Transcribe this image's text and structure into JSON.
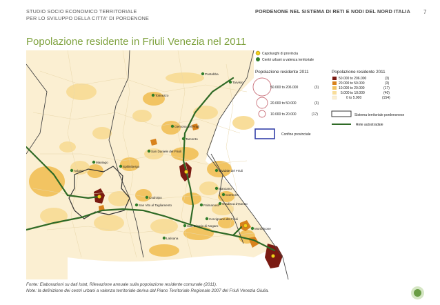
{
  "header": {
    "left_line1": "STUDIO SOCIO ECONOMICO TERRITORIALE",
    "left_line2": "PER LO SVILUPPO DELLA CITTA' DI PORDENONE",
    "right": "PORDENONE NEL SISTEMA DI RETI E NODI DEL NORD ITALIA",
    "page_number": "7"
  },
  "title": "Popolazione residente in Friuli Venezia nel 2011",
  "legend": {
    "capoluoghi": "Capoluoghi di provincia",
    "centri": "Centri urbani a valenza territoriale",
    "circles_title": "Popolazione residente 2011",
    "circles": [
      {
        "label": "50.000 to 206.000",
        "count": "(3)"
      },
      {
        "label": "20.000 to 50.000",
        "count": "(3)"
      },
      {
        "label": "10.000 to 20.000",
        "count": "(17)"
      }
    ],
    "classes_title": "Popolazione residente 2011",
    "classes": [
      {
        "label": "50.000 to 206.000",
        "count": "(3)",
        "color": "#7a1a12"
      },
      {
        "label": "20.000 to 50.000",
        "count": "(3)",
        "color": "#d8821c"
      },
      {
        "label": "10.000 to 20.000",
        "count": "(17)",
        "color": "#f2c462"
      },
      {
        "label": "5.000 to 10.000",
        "count": "(40)",
        "color": "#f8dd9a"
      },
      {
        "label": "0 to 5.000",
        "count": "(154)",
        "color": "#fbefd2"
      }
    ],
    "sistema": "Sistema territoriale pordenonese",
    "confine": "Confine provinciale",
    "autostrada": "Rete autostradale"
  },
  "places": [
    "Tarvisio",
    "Pontebba",
    "Tolmezzo",
    "Gemona del Friuli",
    "Tarcento",
    "San Daniele del Friuli",
    "Maniago",
    "Spilimbergo",
    "Cividale del Friuli",
    "Aviano",
    "Manzano",
    "Cormons",
    "Gradisca d'Isonzo",
    "Codroipo",
    "San Vito al Tagliamento",
    "Palmanova",
    "Cervignano del Friuli",
    "San Giorgio di Nogaro",
    "Latisana",
    "Monfalcone"
  ],
  "source_line1": "Fonte: Elaborazioni su dati Istat, Rilevazione annuale sulla popolazione residente comunale (2011).",
  "source_line2": "Note: la definizione dei centri urbani a valenza territoriale deriva dal Piano Territoriale Regionale 2007 del Friuli Venezia Giulia.",
  "colors": {
    "title": "#7fa23f",
    "class1": "#7a1a12",
    "class2": "#d8821c",
    "class3": "#f2c462",
    "class4": "#f8dd9a",
    "class5": "#fbefd2",
    "autostrada": "#2f6a26",
    "confine": "#3340a8",
    "center_dot": "#2f7d2a",
    "capoluogo_dot": "#f5d11c"
  }
}
